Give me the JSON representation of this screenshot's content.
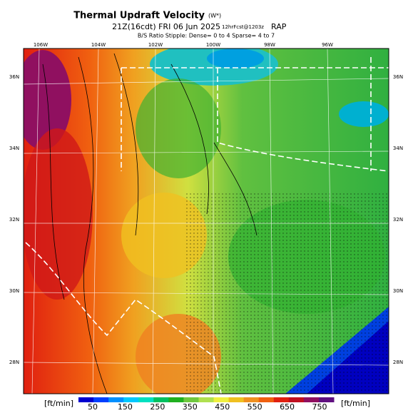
{
  "header": {
    "title": "Thermal Updraft Velocity",
    "title_unit": "(W*)",
    "subtitle": "21Z(16cdt) FRI 06 Jun 2025",
    "subtitle_small": "12hrFcst@1203z",
    "model": "RAP",
    "note": "B/S Ratio Stipple: Dense= 0 to 4  Sparse= 4 to 7"
  },
  "map": {
    "lon_labels": [
      "106W",
      "104W",
      "102W",
      "100W",
      "98W",
      "96W"
    ],
    "lat_labels_left": [
      "36N",
      "34N",
      "32N",
      "30N",
      "28N"
    ],
    "lat_labels_right": [
      "36N",
      "34N",
      "32N",
      "30N",
      "28N"
    ]
  },
  "colorbar": {
    "unit": "[ft/min]",
    "labels": [
      "50",
      "150",
      "250",
      "350",
      "450",
      "550",
      "650",
      "750"
    ]
  }
}
